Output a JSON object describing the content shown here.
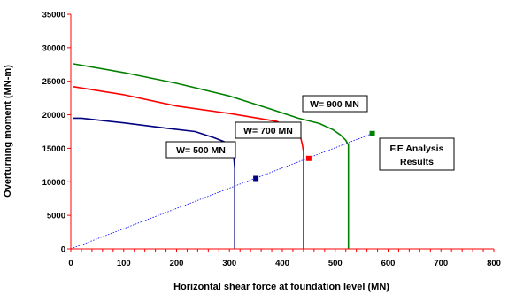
{
  "chart_data": {
    "type": "line",
    "title": "",
    "xlabel": "Horizontal shear force at foundation level (MN)",
    "ylabel": "Overturning moment (MN-m)",
    "xlim": [
      0,
      800
    ],
    "ylim": [
      0,
      35000
    ],
    "xticks": [
      "0",
      "100",
      "200",
      "300",
      "400",
      "500",
      "600",
      "700",
      "800"
    ],
    "yticks": [
      "0",
      "5000",
      "10000",
      "15000",
      "20000",
      "25000",
      "30000",
      "35000"
    ],
    "grid": false,
    "series": [
      {
        "name": "W= 500 MN",
        "color": "#000080",
        "x": [
          5,
          20,
          100,
          180,
          235,
          270,
          290,
          300,
          305,
          308,
          310,
          310
        ],
        "y": [
          19500,
          19500,
          18800,
          18000,
          17500,
          16600,
          16000,
          15500,
          15000,
          14000,
          12000,
          0
        ]
      },
      {
        "name": "W= 700 MN",
        "color": "#ff0000",
        "x": [
          5,
          100,
          200,
          300,
          390,
          425,
          435,
          438,
          440,
          440
        ],
        "y": [
          24200,
          23000,
          21300,
          20200,
          19000,
          17500,
          16500,
          15500,
          14500,
          0
        ]
      },
      {
        "name": "W= 900 MN",
        "color": "#008000",
        "x": [
          5,
          100,
          200,
          300,
          380,
          430,
          470,
          495,
          510,
          520,
          525,
          525
        ],
        "y": [
          27600,
          26300,
          24700,
          22800,
          20800,
          19500,
          18700,
          17800,
          17000,
          16200,
          15500,
          0
        ]
      }
    ],
    "fe_points": [
      {
        "x": 350,
        "y": 10500,
        "color": "#000080"
      },
      {
        "x": 450,
        "y": 13500,
        "color": "#ff0000"
      },
      {
        "x": 570,
        "y": 17200,
        "color": "#008000"
      }
    ],
    "trend_line": {
      "x": [
        0,
        570
      ],
      "y": [
        0,
        17200
      ],
      "color": "#0000ff"
    },
    "annotations": [
      {
        "text": "W= 500 MN"
      },
      {
        "text": "W= 700 MN"
      },
      {
        "text": "W= 900 MN"
      },
      {
        "text": "F.E Analysis",
        "text2": "Results"
      }
    ]
  }
}
